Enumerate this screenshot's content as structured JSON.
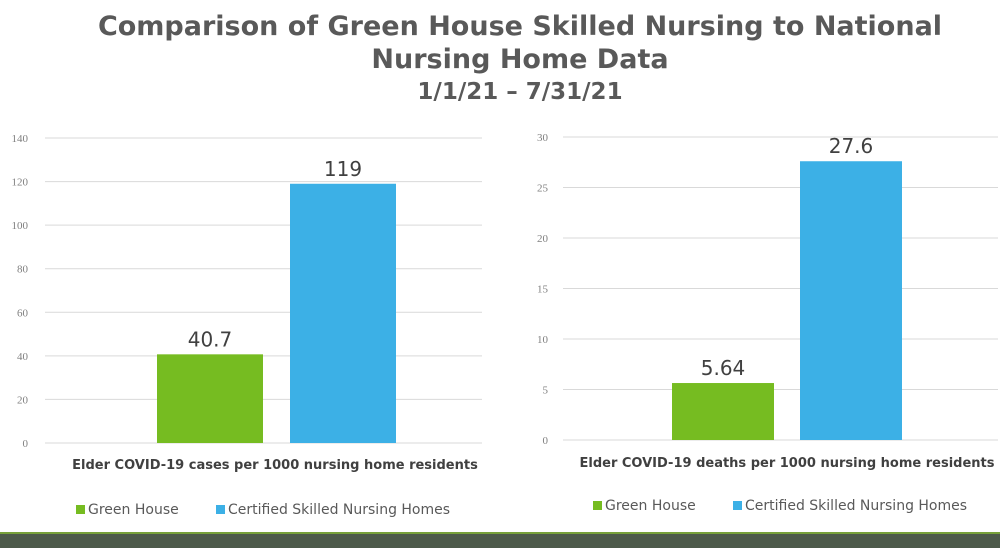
{
  "header": {
    "title": "Comparison of Green House Skilled Nursing to National Nursing Home Data",
    "title_line1": "Comparison of Green House Skilled Nursing to National",
    "title_line2": "Nursing Home Data",
    "subtitle": "1/1/21 – 7/31/21"
  },
  "colors": {
    "green_house": "#76bc21",
    "certified": "#3cb0e6",
    "gridline": "#d9d9d9",
    "footer_bar": "#4d5a4a"
  },
  "chart_data": [
    {
      "type": "bar",
      "categories": [
        "Elder COVID-19 cases per 1000 nursing home residents"
      ],
      "xlabel": "Elder COVID-19 cases per 1000 nursing home residents",
      "ylabel": "",
      "ylim": [
        0,
        140
      ],
      "yticks": [
        0,
        20,
        40,
        60,
        80,
        100,
        120,
        140
      ],
      "grid": true,
      "legend_position": "bottom",
      "series": [
        {
          "name": "Green House",
          "values": [
            40.7
          ],
          "label": "40.7",
          "color": "#76bc21"
        },
        {
          "name": "Certified Skilled Nursing Homes",
          "values": [
            119
          ],
          "label": "119",
          "color": "#3cb0e6"
        }
      ]
    },
    {
      "type": "bar",
      "categories": [
        "Elder COVID-19 deaths per 1000 nursing home residents"
      ],
      "xlabel": "Elder COVID-19 deaths per 1000 nursing home residents",
      "ylabel": "",
      "ylim": [
        0,
        30
      ],
      "yticks": [
        0,
        5,
        10,
        15,
        20,
        25,
        30
      ],
      "grid": true,
      "legend_position": "bottom",
      "series": [
        {
          "name": "Green House",
          "values": [
            5.64
          ],
          "label": "5.64",
          "color": "#76bc21"
        },
        {
          "name": "Certified Skilled Nursing Homes",
          "values": [
            27.6
          ],
          "label": "27.6",
          "color": "#3cb0e6"
        }
      ]
    }
  ]
}
